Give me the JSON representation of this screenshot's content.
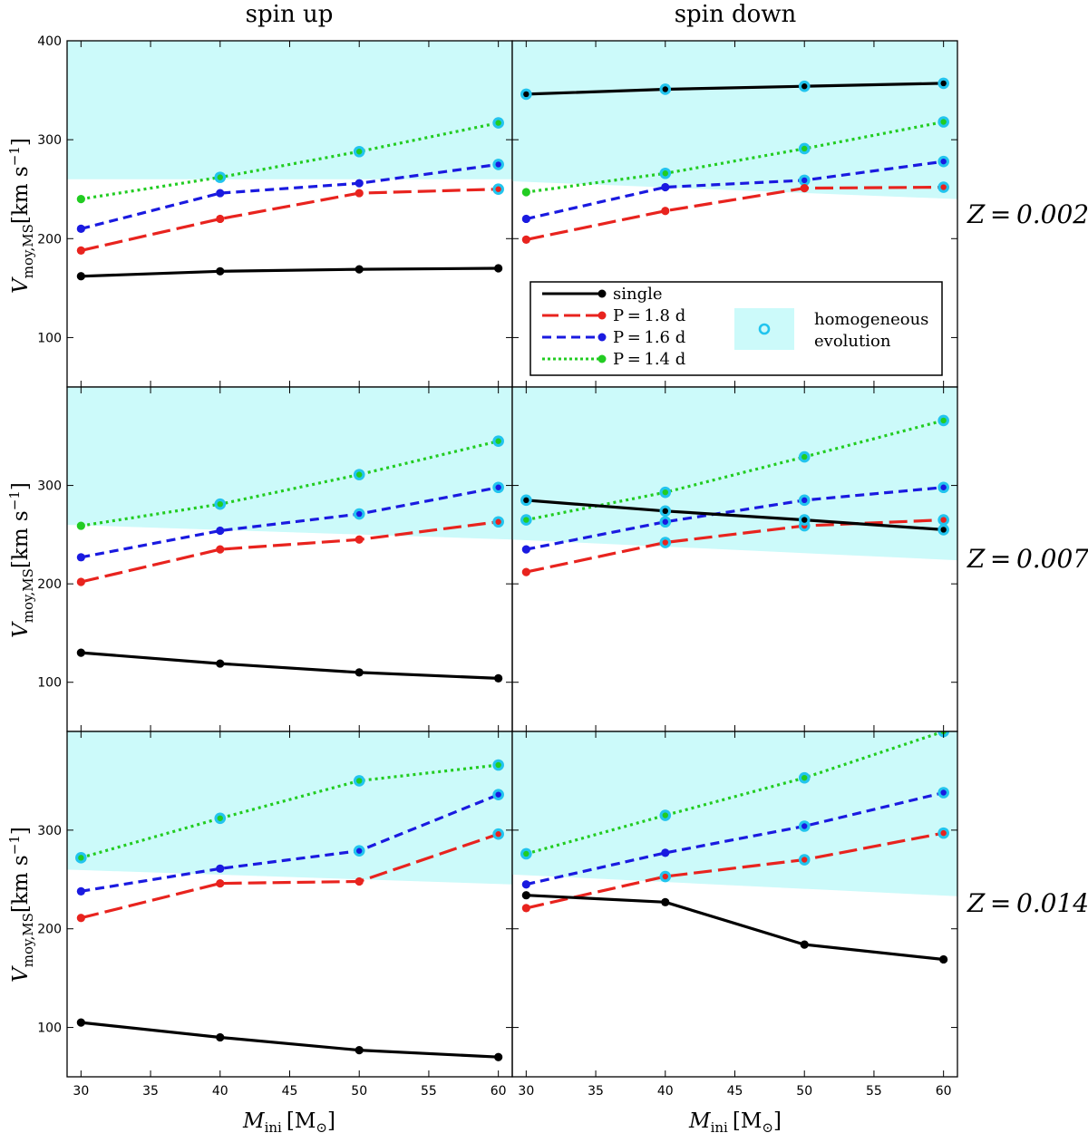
{
  "colors": {
    "single": "#000000",
    "p18": "#e8231e",
    "p16": "#1a1ae0",
    "p14": "#22cc22",
    "homogeneous_fill": "#ccfafa",
    "homogeneous_marker": "#22c4ee",
    "p18_dark": "#b83a3a"
  },
  "labels": {
    "col_titles": [
      "spin up",
      "spin down"
    ],
    "row_titles": [
      "Z = 0.002",
      "Z = 0.007",
      "Z = 0.014"
    ],
    "ylabel": "V",
    "ylabel_sub": "moy,MS",
    "ylabel_unit": "[km s",
    "ylabel_unit_sup": "−1",
    "ylabel_unit_end": "]",
    "xlabel": "M",
    "xlabel_sub": "ini",
    "xlabel_unit_open": "[M",
    "xlabel_unit_sub": "⊙",
    "xlabel_unit_close": "]"
  },
  "legend": {
    "single": "single",
    "p18": "P = 1.8 d",
    "p16": "P = 1.6 d",
    "p14": "P = 1.4 d",
    "homog_line1": "homogeneous",
    "homog_line2": "evolution"
  },
  "chart_data": {
    "type": "line",
    "x": [
      30,
      40,
      50,
      60
    ],
    "xlim": [
      29,
      61
    ],
    "xticks": [
      30,
      35,
      40,
      45,
      50,
      55,
      60
    ],
    "xlabel": "M_ini [M_sun]",
    "ylabel": "V_moy,MS [km s^-1]",
    "ylim_top_row": [
      50,
      400
    ],
    "ylim_other_rows": [
      50,
      400
    ],
    "yticks_top_row": [
      100,
      200,
      300,
      400
    ],
    "yticks_other_rows": [
      100,
      200,
      300
    ],
    "columns": [
      "spin up",
      "spin down"
    ],
    "rows": [
      "Z=0.002",
      "Z=0.007",
      "Z=0.014"
    ],
    "panels": [
      {
        "row": 0,
        "col": 0,
        "homogeneous_threshold": [
          [
            29,
            260
          ],
          [
            61,
            260
          ]
        ],
        "series": [
          {
            "name": "single",
            "values": [
              162,
              167,
              169,
              170
            ],
            "homogeneous": [
              false,
              false,
              false,
              false
            ]
          },
          {
            "name": "P = 1.8 d",
            "values": [
              188,
              220,
              246,
              250
            ],
            "homogeneous": [
              false,
              false,
              false,
              true
            ]
          },
          {
            "name": "P = 1.6 d",
            "values": [
              210,
              246,
              256,
              275
            ],
            "homogeneous": [
              false,
              false,
              false,
              true
            ]
          },
          {
            "name": "P = 1.4 d",
            "values": [
              240,
              262,
              288,
              317
            ],
            "homogeneous": [
              false,
              true,
              true,
              true
            ]
          }
        ]
      },
      {
        "row": 0,
        "col": 1,
        "homogeneous_threshold": [
          [
            29,
            258
          ],
          [
            61,
            240
          ]
        ],
        "series": [
          {
            "name": "single",
            "values": [
              346,
              351,
              354,
              357
            ],
            "homogeneous": [
              true,
              true,
              true,
              true
            ]
          },
          {
            "name": "P = 1.8 d",
            "values": [
              199,
              228,
              251,
              252
            ],
            "homogeneous": [
              false,
              false,
              false,
              true
            ]
          },
          {
            "name": "P = 1.6 d",
            "values": [
              220,
              252,
              259,
              278
            ],
            "homogeneous": [
              false,
              false,
              true,
              true
            ]
          },
          {
            "name": "P = 1.4 d",
            "values": [
              247,
              266,
              291,
              318
            ],
            "homogeneous": [
              false,
              true,
              true,
              true
            ]
          }
        ]
      },
      {
        "row": 1,
        "col": 0,
        "homogeneous_threshold": [
          [
            29,
            260
          ],
          [
            61,
            245
          ]
        ],
        "series": [
          {
            "name": "single",
            "values": [
              130,
              119,
              110,
              104
            ],
            "homogeneous": [
              false,
              false,
              false,
              false
            ]
          },
          {
            "name": "P = 1.8 d",
            "values": [
              202,
              235,
              245,
              263
            ],
            "homogeneous": [
              false,
              false,
              false,
              true
            ]
          },
          {
            "name": "P = 1.6 d",
            "values": [
              227,
              254,
              271,
              298
            ],
            "homogeneous": [
              false,
              false,
              true,
              true
            ]
          },
          {
            "name": "P = 1.4 d",
            "values": [
              259,
              281,
              311,
              345
            ],
            "homogeneous": [
              false,
              true,
              true,
              true
            ]
          }
        ]
      },
      {
        "row": 1,
        "col": 1,
        "homogeneous_threshold": [
          [
            29,
            245
          ],
          [
            61,
            224
          ]
        ],
        "series": [
          {
            "name": "single",
            "values": [
              285,
              274,
              265,
              255
            ],
            "homogeneous": [
              true,
              true,
              true,
              true
            ]
          },
          {
            "name": "P = 1.8 d",
            "values": [
              212,
              242,
              259,
              265
            ],
            "homogeneous": [
              false,
              true,
              true,
              true
            ]
          },
          {
            "name": "P = 1.6 d",
            "values": [
              235,
              263,
              285,
              298
            ],
            "homogeneous": [
              false,
              true,
              true,
              true
            ]
          },
          {
            "name": "P = 1.4 d",
            "values": [
              265,
              293,
              329,
              366
            ],
            "homogeneous": [
              true,
              true,
              true,
              true
            ]
          }
        ]
      },
      {
        "row": 2,
        "col": 0,
        "homogeneous_threshold": [
          [
            29,
            260
          ],
          [
            61,
            245
          ]
        ],
        "series": [
          {
            "name": "single",
            "values": [
              105,
              90,
              77,
              70
            ],
            "homogeneous": [
              false,
              false,
              false,
              false
            ]
          },
          {
            "name": "P = 1.8 d",
            "values": [
              211,
              246,
              248,
              296
            ],
            "homogeneous": [
              false,
              false,
              false,
              true
            ]
          },
          {
            "name": "P = 1.6 d",
            "values": [
              238,
              261,
              279,
              336
            ],
            "homogeneous": [
              false,
              false,
              true,
              true
            ]
          },
          {
            "name": "P = 1.4 d",
            "values": [
              272,
              312,
              350,
              366
            ],
            "homogeneous": [
              true,
              true,
              true,
              true
            ]
          }
        ]
      },
      {
        "row": 2,
        "col": 1,
        "homogeneous_threshold": [
          [
            29,
            255
          ],
          [
            61,
            233
          ]
        ],
        "series": [
          {
            "name": "single",
            "values": [
              234,
              227,
              184,
              169
            ],
            "homogeneous": [
              false,
              false,
              false,
              false
            ]
          },
          {
            "name": "P = 1.8 d",
            "values": [
              221,
              253,
              270,
              297
            ],
            "homogeneous": [
              false,
              true,
              true,
              true
            ]
          },
          {
            "name": "P = 1.6 d",
            "values": [
              245,
              277,
              304,
              338
            ],
            "homogeneous": [
              false,
              false,
              true,
              true
            ]
          },
          {
            "name": "P = 1.4 d",
            "values": [
              276,
              315,
              353,
              400
            ],
            "homogeneous": [
              true,
              true,
              true,
              true
            ]
          }
        ]
      }
    ]
  }
}
